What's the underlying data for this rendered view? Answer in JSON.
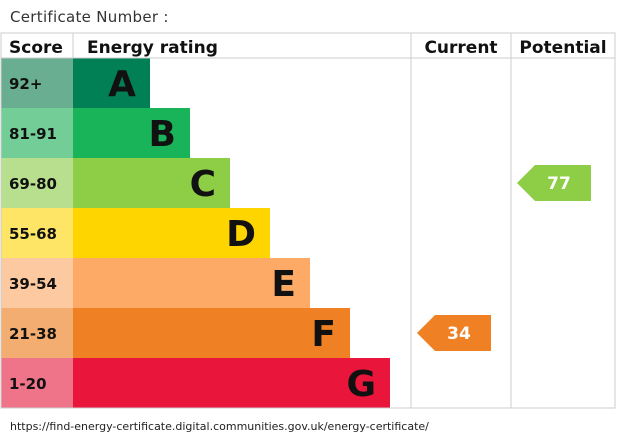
{
  "header": {
    "certificate_label": "Certificate Number :"
  },
  "footer": {
    "url": "https://find-energy-certificate.digital.communities.gov.uk/energy-certificate/"
  },
  "chart_data": {
    "type": "bar",
    "title": "",
    "columns": {
      "score": "Score",
      "rating": "Energy rating",
      "current": "Current",
      "potential": "Potential"
    },
    "bands": [
      {
        "letter": "A",
        "range": "92+",
        "color": "#008054",
        "range_bg": "#6aae91"
      },
      {
        "letter": "B",
        "range": "81-91",
        "color": "#19b459",
        "range_bg": "#73cd97"
      },
      {
        "letter": "C",
        "range": "69-80",
        "color": "#8dce46",
        "range_bg": "#b8df8d"
      },
      {
        "letter": "D",
        "range": "55-68",
        "color": "#ffd500",
        "range_bg": "#ffe566"
      },
      {
        "letter": "E",
        "range": "39-54",
        "color": "#fcaa65",
        "range_bg": "#fdc9a0"
      },
      {
        "letter": "F",
        "range": "21-38",
        "color": "#ef8023",
        "range_bg": "#f4ad70"
      },
      {
        "letter": "G",
        "range": "1-20",
        "color": "#e9153b",
        "range_bg": "#f07489"
      }
    ],
    "current": {
      "value": 34,
      "band": "F",
      "color": "#ef8023"
    },
    "potential": {
      "value": 77,
      "band": "C",
      "color": "#8dce46"
    }
  }
}
